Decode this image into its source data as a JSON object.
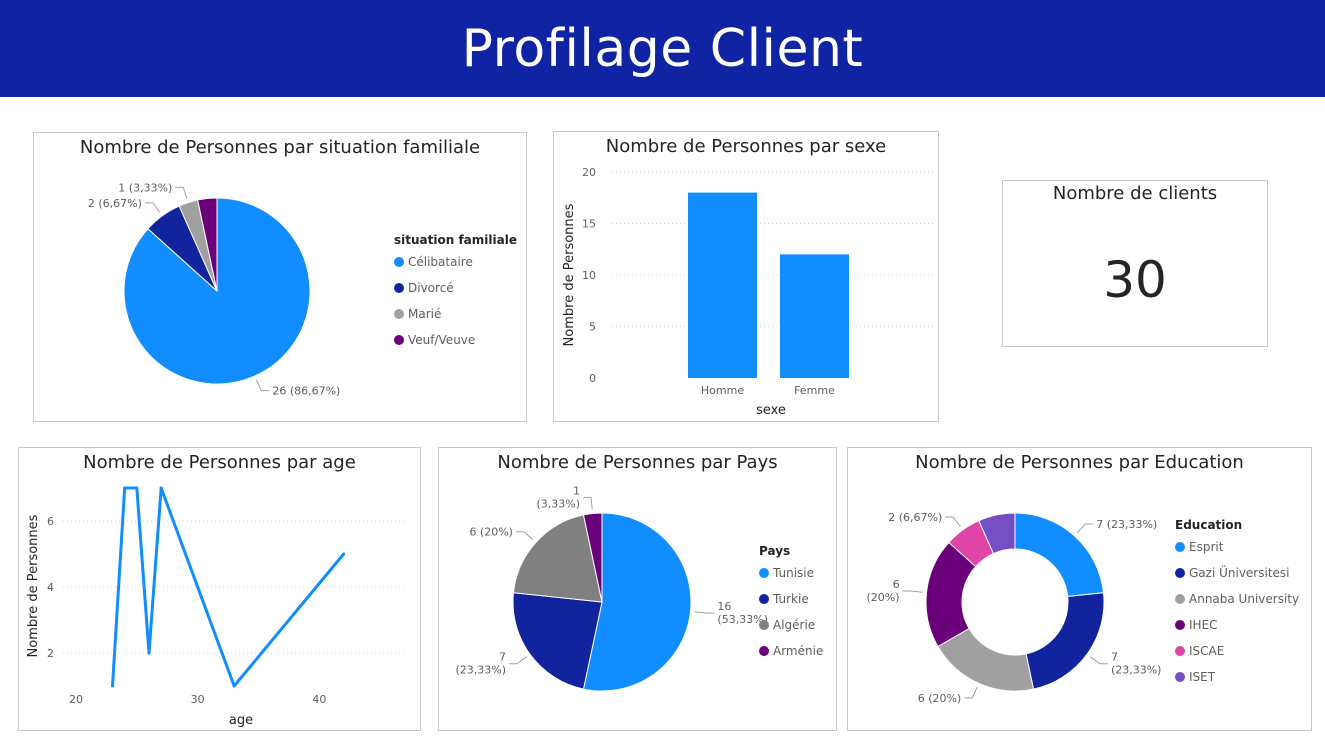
{
  "header": {
    "title": "Profilage Client"
  },
  "colors": {
    "banner": "#1024a3",
    "c1": "#118dff",
    "c2": "#12239e",
    "c3": "#a0a0a0",
    "c4": "#6b007b",
    "c5": "#e044a7",
    "c6": "#744ec2",
    "c_grey": "#808080"
  },
  "kpi": {
    "title": "Nombre de clients",
    "value": "30"
  },
  "chart_data": [
    {
      "id": "famille",
      "type": "pie",
      "title": "Nombre de Personnes par situation familiale",
      "legend_title": "situation familiale",
      "legend_position": "right",
      "categories": [
        "Célibataire",
        "Divorcé",
        "Marié",
        "Veuf/Veuve"
      ],
      "values": [
        26,
        2,
        1,
        1
      ],
      "labels": [
        "26 (86,67%)",
        "2 (6,67%)",
        "1 (3,33%)",
        ""
      ]
    },
    {
      "id": "sexe",
      "type": "bar",
      "title": "Nombre de Personnes par sexe",
      "xlabel": "sexe",
      "ylabel": "Nombre de Personnes",
      "categories": [
        "Homme",
        "Femme"
      ],
      "values": [
        18,
        12
      ],
      "ylim": [
        0,
        20
      ],
      "yticks": [
        0,
        5,
        10,
        15,
        20
      ],
      "grid": true
    },
    {
      "id": "age",
      "type": "line",
      "title": "Nombre de Personnes par age",
      "xlabel": "age",
      "ylabel": "Nombre de Personnes",
      "x": [
        23,
        24,
        25,
        26,
        27,
        33,
        42
      ],
      "y": [
        1,
        7,
        7,
        2,
        7,
        1,
        5
      ],
      "xlim": [
        20,
        44
      ],
      "ylim": [
        1,
        7
      ],
      "xticks": [
        20,
        30,
        40
      ],
      "yticks": [
        2,
        4,
        6
      ],
      "grid": true
    },
    {
      "id": "pays",
      "type": "pie",
      "title": "Nombre de Personnes par Pays",
      "legend_title": "Pays",
      "legend_position": "right",
      "categories": [
        "Tunisie",
        "Turkie",
        "Algérie",
        "Arménie"
      ],
      "values": [
        16,
        7,
        6,
        1
      ],
      "labels": [
        "16\n(53,33%)",
        "7\n(23,33%)",
        "6 (20%)",
        "1\n(3,33%)"
      ]
    },
    {
      "id": "education",
      "type": "donut",
      "title": "Nombre de Personnes par Education",
      "legend_title": "Education",
      "legend_position": "right",
      "categories": [
        "Esprit",
        "Gazi Üniversitesi",
        "Annaba University",
        "IHEC",
        "ISCAE",
        "ISET"
      ],
      "values": [
        7,
        7,
        6,
        6,
        2,
        2
      ],
      "labels": [
        "7 (23,33%)",
        "7\n(23,33%)",
        "6 (20%)",
        "6\n(20%)",
        "2 (6,67%)",
        ""
      ]
    }
  ]
}
